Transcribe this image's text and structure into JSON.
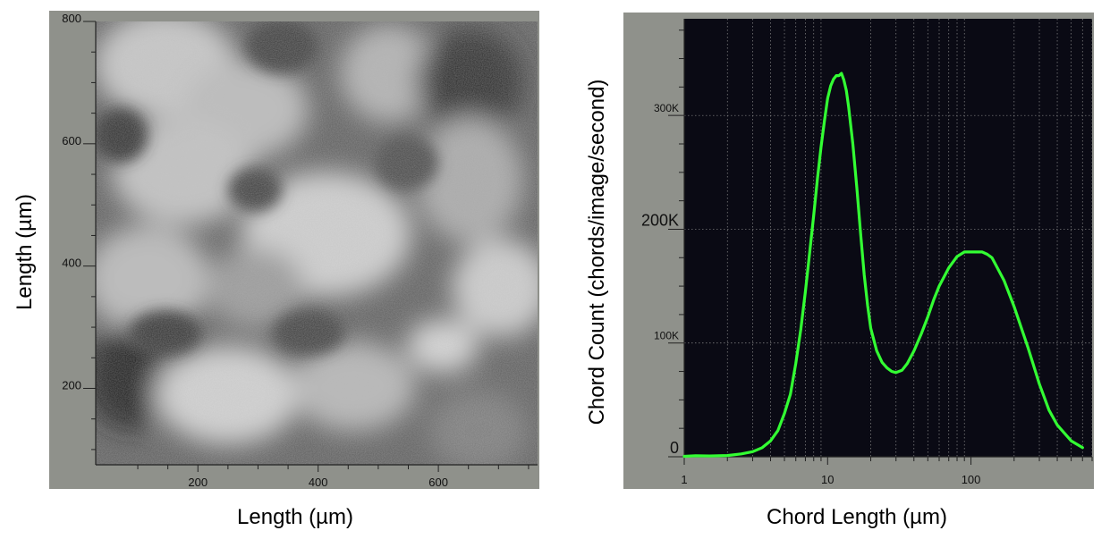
{
  "chart_data": [
    {
      "type": "image",
      "xlabel": "Length (µm)",
      "ylabel": "Length (µm)",
      "x_ticks": [
        "200",
        "400",
        "600"
      ],
      "y_ticks": [
        "200",
        "400",
        "600",
        "800"
      ],
      "x_tick_values": [
        200,
        400,
        600
      ],
      "y_tick_values": [
        200,
        400,
        600,
        800
      ],
      "xlim": [
        30,
        765
      ],
      "ylim": [
        75,
        800
      ]
    },
    {
      "type": "line",
      "xlabel": "Chord Length (µm)",
      "ylabel": "Chord Count (chords/image/second)",
      "x_scale": "log",
      "xlim": [
        1,
        700
      ],
      "ylim": [
        0,
        385000
      ],
      "x_ticks": [
        "1",
        "10",
        "100"
      ],
      "x_tick_values": [
        1,
        10,
        100
      ],
      "y_ticks": [
        "0",
        "100K",
        "200K",
        "300K"
      ],
      "y_tick_values": [
        0,
        100000,
        200000,
        300000
      ],
      "grid": true,
      "colors": {
        "line": "#33ff33",
        "plot_bg": "#0a0a14",
        "frame": "#8f918b"
      },
      "series": [
        {
          "x": [
            1,
            1.2,
            1.5,
            2,
            2.5,
            3,
            3.5,
            4,
            4.5,
            5,
            5.5,
            6,
            6.5,
            7,
            7.5,
            8,
            8.5,
            9,
            9.5,
            10,
            10.5,
            11,
            11.5,
            12,
            12.5,
            13,
            13.5,
            14,
            15,
            16,
            17,
            18,
            19,
            20,
            22,
            24,
            26,
            28,
            30,
            33,
            36,
            40,
            45,
            50,
            55,
            60,
            70,
            80,
            90,
            100,
            110,
            120,
            130,
            140,
            150,
            170,
            200,
            250,
            300,
            350,
            400,
            500,
            600
          ],
          "y": [
            400,
            900,
            700,
            1100,
            2500,
            4500,
            8000,
            14000,
            23000,
            38000,
            55000,
            82000,
            112000,
            145000,
            180000,
            212000,
            245000,
            272000,
            295000,
            315000,
            326000,
            332000,
            335000,
            335000,
            337000,
            331000,
            322000,
            308000,
            275000,
            236000,
            196000,
            160000,
            133000,
            113000,
            93000,
            83000,
            78000,
            75000,
            74000,
            76000,
            82000,
            93000,
            108000,
            123000,
            138000,
            150000,
            166000,
            176000,
            180000,
            180000,
            180000,
            180000,
            178000,
            175000,
            168000,
            155000,
            132000,
            96000,
            64000,
            41000,
            28000,
            14000,
            8000
          ]
        }
      ]
    }
  ]
}
